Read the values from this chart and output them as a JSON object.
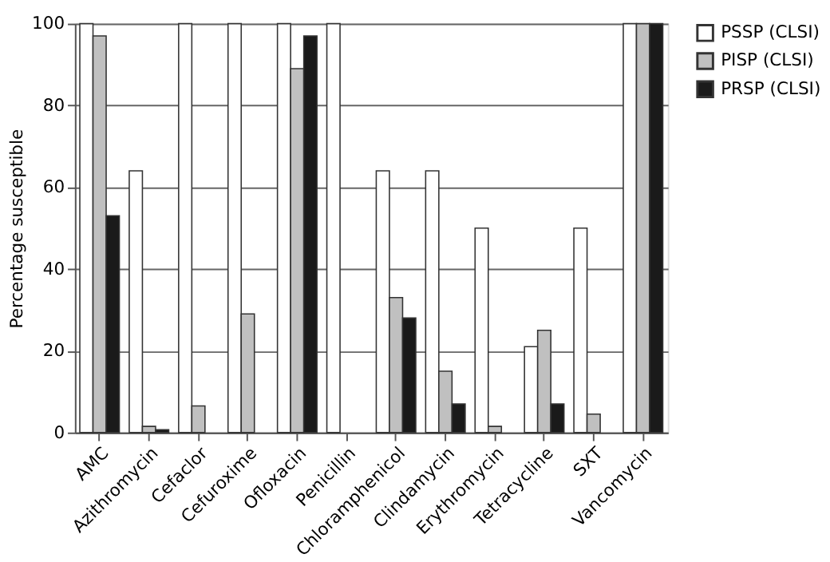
{
  "chart_data": {
    "type": "bar",
    "ylabel": "Percentage susceptible",
    "categories": [
      "AMC",
      "Azithromycin",
      "Cefaclor",
      "Cefuroxime",
      "Ofloxacin",
      "Penicillin",
      "Chloramphenicol",
      "Clindamycin",
      "Erythromycin",
      "Tetracycline",
      "SXT",
      "Vancomycin"
    ],
    "series": [
      {
        "name": "PSSP (CLSI)",
        "color": "#ffffff",
        "values": [
          100,
          64,
          100,
          100,
          100,
          100,
          64,
          64,
          50,
          21,
          50,
          100
        ]
      },
      {
        "name": "PISP (CLSI)",
        "color": "#c0c0c0",
        "values": [
          97,
          1.5,
          6.5,
          29,
          89,
          0,
          33,
          15,
          1.5,
          25,
          4.5,
          100
        ]
      },
      {
        "name": "PRSP (CLSI)",
        "color": "#1a1a1a",
        "values": [
          53,
          0.7,
          0,
          0,
          97,
          0,
          28,
          7,
          0,
          7,
          0,
          100
        ]
      }
    ],
    "ylim": [
      0,
      100
    ],
    "yticks": [
      0,
      20,
      40,
      60,
      80,
      100
    ],
    "grid": "y",
    "legend": "right"
  }
}
